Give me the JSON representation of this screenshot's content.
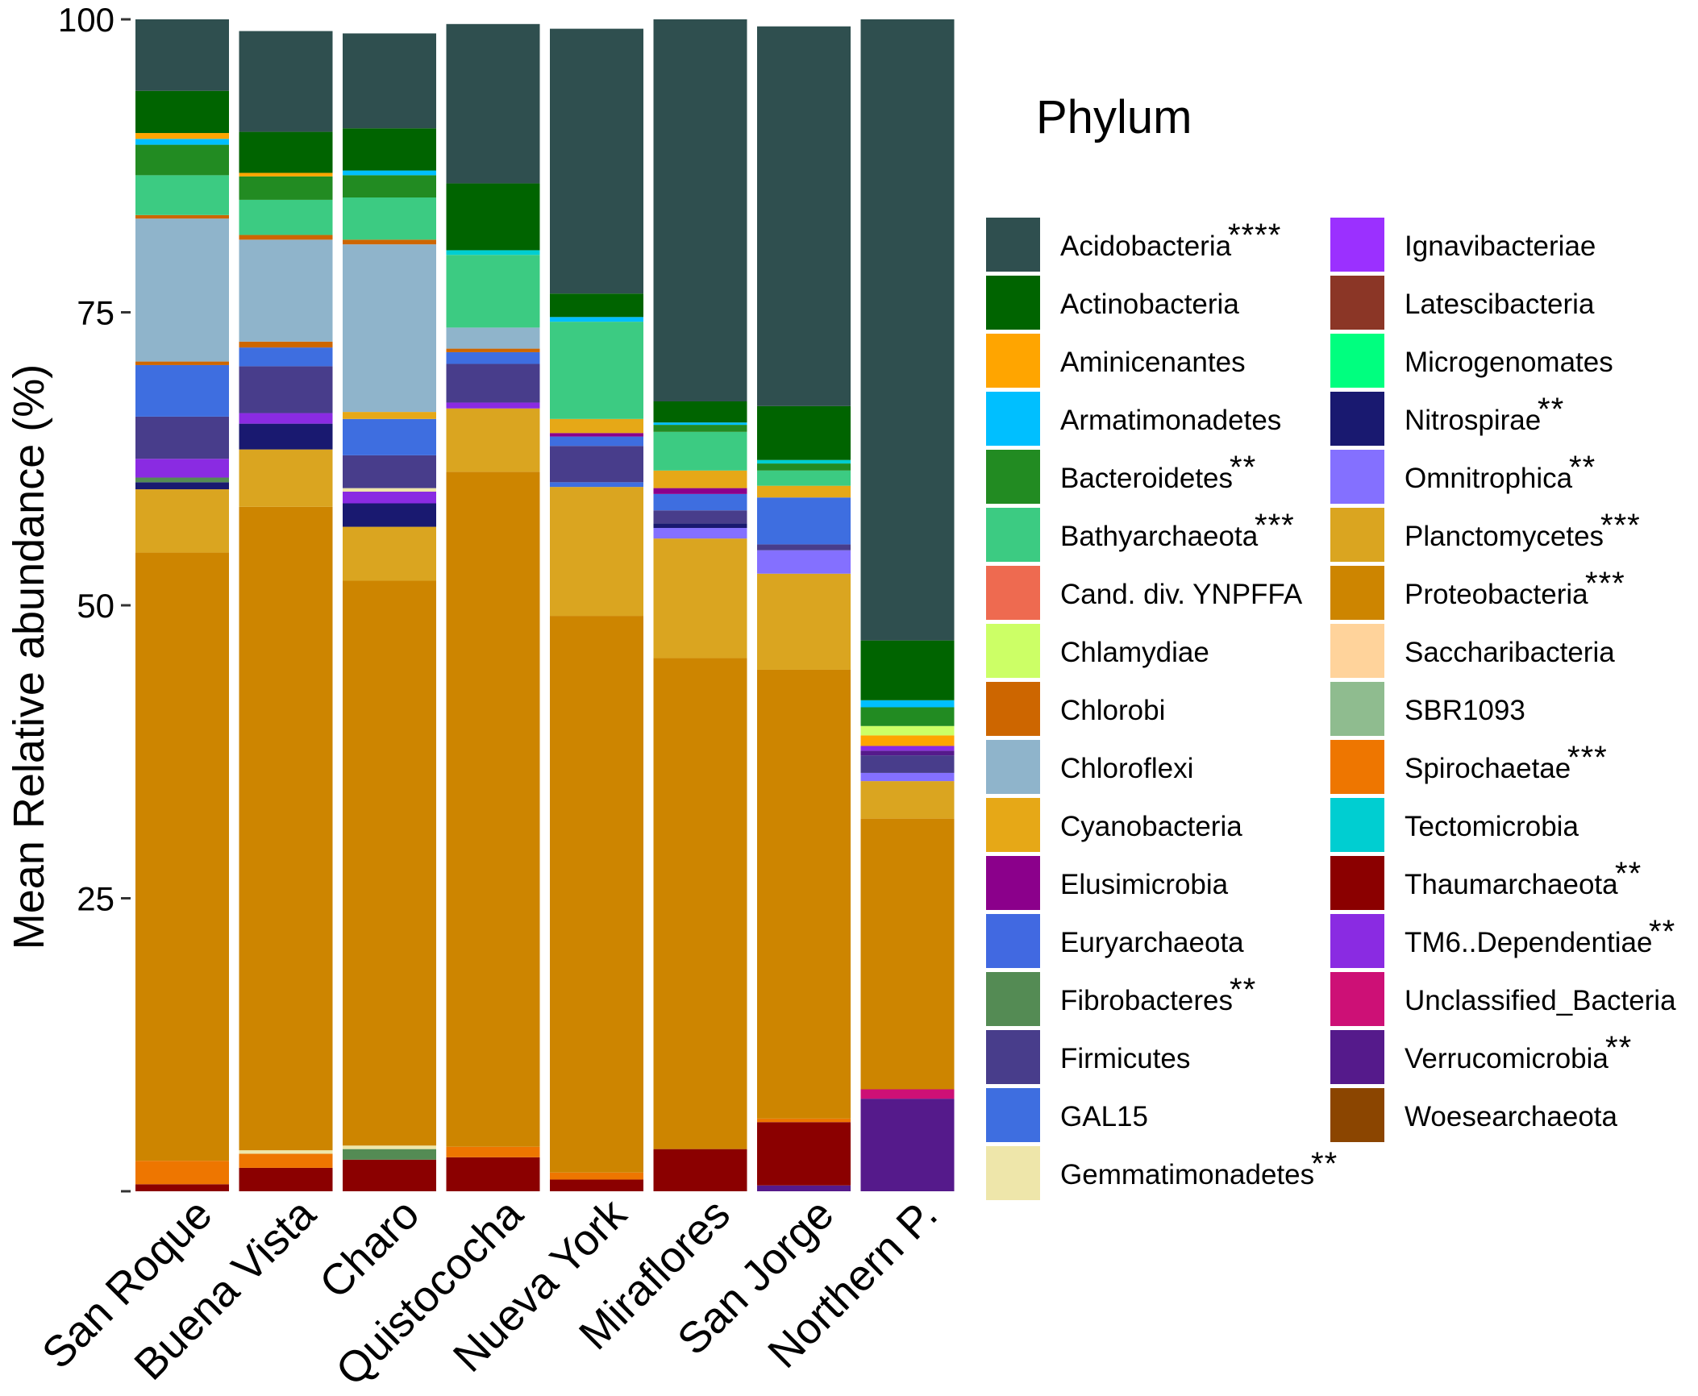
{
  "chart_data": {
    "type": "stacked-bar",
    "ylabel": "Mean Relative abundance (%)",
    "ylim": [
      0,
      100
    ],
    "yticks": [
      "0",
      "25",
      "50",
      "75",
      "100"
    ],
    "yticks_display": [
      "",
      "25",
      "50",
      "75",
      "100"
    ],
    "categories": [
      "San Roque",
      "Buena Vista",
      "Charo",
      "Quistococha",
      "Nueva York",
      "Miraflores",
      "San Jorge",
      "Northern P."
    ],
    "legend_title": "Phylum",
    "phyla": [
      {
        "name": "Acidobacteria",
        "color": "#2F4F4F",
        "stars": "****"
      },
      {
        "name": "Actinobacteria",
        "color": "#006400",
        "stars": ""
      },
      {
        "name": "Aminicenantes",
        "color": "#FFA500",
        "stars": ""
      },
      {
        "name": "Armatimonadetes",
        "color": "#00BFFF",
        "stars": ""
      },
      {
        "name": "Bacteroidetes",
        "color": "#228B22",
        "stars": "**"
      },
      {
        "name": "Bathyarchaeota",
        "color": "#3CCB82",
        "stars": "***"
      },
      {
        "name": "Cand. div. YNPFFA",
        "color": "#EE6A50",
        "stars": ""
      },
      {
        "name": "Chlamydiae",
        "color": "#CCFF66",
        "stars": ""
      },
      {
        "name": "Chlorobi",
        "color": "#CD6600",
        "stars": ""
      },
      {
        "name": "Chloroflexi",
        "color": "#8FB4CB",
        "stars": ""
      },
      {
        "name": "Cyanobacteria",
        "color": "#E6A817",
        "stars": ""
      },
      {
        "name": "Elusimicrobia",
        "color": "#8B008B",
        "stars": ""
      },
      {
        "name": "Euryarchaeota",
        "color": "#4169E1",
        "stars": ""
      },
      {
        "name": "Fibrobacteres",
        "color": "#548B54",
        "stars": "**"
      },
      {
        "name": "Firmicutes",
        "color": "#483D8B",
        "stars": ""
      },
      {
        "name": "GAL15",
        "color": "#3E6EE0",
        "stars": ""
      },
      {
        "name": "Gemmatimonadetes",
        "color": "#EEE6AA",
        "stars": "**"
      },
      {
        "name": "Ignavibacteriae",
        "color": "#9B30FF",
        "stars": ""
      },
      {
        "name": "Latescibacteria",
        "color": "#8B3626",
        "stars": ""
      },
      {
        "name": "Microgenomates",
        "color": "#00FF7F",
        "stars": ""
      },
      {
        "name": "Nitrospirae",
        "color": "#191970",
        "stars": "**"
      },
      {
        "name": "Omnitrophica",
        "color": "#8470FF",
        "stars": "**"
      },
      {
        "name": "Planctomycetes",
        "color": "#DAA520",
        "stars": "***"
      },
      {
        "name": "Proteobacteria",
        "color": "#CD8500",
        "stars": "***"
      },
      {
        "name": "Saccharibacteria",
        "color": "#FFD39B",
        "stars": ""
      },
      {
        "name": "SBR1093",
        "color": "#8FBC8F",
        "stars": ""
      },
      {
        "name": "Spirochaetae",
        "color": "#EE7600",
        "stars": "***"
      },
      {
        "name": "Tectomicrobia",
        "color": "#00CED1",
        "stars": ""
      },
      {
        "name": "Thaumarchaeota",
        "color": "#8B0000",
        "stars": "**"
      },
      {
        "name": "TM6..Dependentiae",
        "color": "#8A2BE2",
        "stars": "**"
      },
      {
        "name": "Unclassified_Bacteria",
        "color": "#CD1076",
        "stars": ""
      },
      {
        "name": "Verrucomicrobia",
        "color": "#551A8B",
        "stars": "**"
      },
      {
        "name": "Woesearchaeota",
        "color": "#8B4500",
        "stars": ""
      }
    ],
    "series": [
      {
        "sample": "San Roque",
        "segments": [
          [
            "Thaumarchaeota",
            0.6
          ],
          [
            "Spirochaetae",
            2.0
          ],
          [
            "Proteobacteria",
            51.9
          ],
          [
            "Planctomycetes",
            5.4
          ],
          [
            "Nitrospirae",
            0.6
          ],
          [
            "Fibrobacteres",
            0.4
          ],
          [
            "TM6..Dependentiae",
            1.6
          ],
          [
            "Firmicutes",
            3.6
          ],
          [
            "GAL15",
            4.4
          ],
          [
            "Chlorobi",
            0.3
          ],
          [
            "Chloroflexi",
            12.2
          ],
          [
            "Chlorobi",
            0.3
          ],
          [
            "Bathyarchaeota",
            3.4
          ],
          [
            "Bacteroidetes",
            2.6
          ],
          [
            "Armatimonadetes",
            0.5
          ],
          [
            "Aminicenantes",
            0.5
          ],
          [
            "Actinobacteria",
            3.6
          ],
          [
            "Acidobacteria",
            6.1
          ]
        ]
      },
      {
        "sample": "Buena Vista",
        "segments": [
          [
            "Thaumarchaeota",
            2.0
          ],
          [
            "Spirochaetae",
            1.2
          ],
          [
            "Gemmatimonadetes",
            0.3
          ],
          [
            "Proteobacteria",
            54.9
          ],
          [
            "Planctomycetes",
            4.9
          ],
          [
            "Nitrospirae",
            2.2
          ],
          [
            "TM6..Dependentiae",
            0.9
          ],
          [
            "Firmicutes",
            4.0
          ],
          [
            "GAL15",
            1.6
          ],
          [
            "Chlorobi",
            0.5
          ],
          [
            "Chloroflexi",
            8.7
          ],
          [
            "Chlorobi",
            0.4
          ],
          [
            "Bathyarchaeota",
            3.0
          ],
          [
            "Bacteroidetes",
            2.0
          ],
          [
            "Aminicenantes",
            0.3
          ],
          [
            "Actinobacteria",
            3.5
          ],
          [
            "Acidobacteria",
            8.6
          ]
        ]
      },
      {
        "sample": "Charo",
        "segments": [
          [
            "Thaumarchaeota",
            2.7
          ],
          [
            "Fibrobacteres",
            0.9
          ],
          [
            "Gemmatimonadetes",
            0.3
          ],
          [
            "Proteobacteria",
            48.2
          ],
          [
            "Planctomycetes",
            4.6
          ],
          [
            "Nitrospirae",
            2.0
          ],
          [
            "TM6..Dependentiae",
            1.0
          ],
          [
            "Gemmatimonadetes",
            0.3
          ],
          [
            "Firmicutes",
            2.8
          ],
          [
            "GAL15",
            3.1
          ],
          [
            "Cyanobacteria",
            0.6
          ],
          [
            "Chloroflexi",
            14.3
          ],
          [
            "Chlorobi",
            0.4
          ],
          [
            "Bathyarchaeota",
            3.6
          ],
          [
            "Bacteroidetes",
            1.9
          ],
          [
            "Armatimonadetes",
            0.4
          ],
          [
            "Actinobacteria",
            3.6
          ],
          [
            "Acidobacteria",
            8.1
          ]
        ]
      },
      {
        "sample": "Quistococha",
        "segments": [
          [
            "Thaumarchaeota",
            2.9
          ],
          [
            "Spirochaetae",
            0.9
          ],
          [
            "Proteobacteria",
            57.6
          ],
          [
            "Planctomycetes",
            5.4
          ],
          [
            "TM6..Dependentiae",
            0.5
          ],
          [
            "Firmicutes",
            3.3
          ],
          [
            "GAL15",
            1.0
          ],
          [
            "Chlorobi",
            0.3
          ],
          [
            "Chloroflexi",
            1.8
          ],
          [
            "Bathyarchaeota",
            6.2
          ],
          [
            "Tectomicrobia",
            0.4
          ],
          [
            "Actinobacteria",
            5.7
          ],
          [
            "Acidobacteria",
            13.6
          ]
        ]
      },
      {
        "sample": "Nueva York",
        "segments": [
          [
            "Thaumarchaeota",
            1.0
          ],
          [
            "Spirochaetae",
            0.6
          ],
          [
            "Proteobacteria",
            47.5
          ],
          [
            "Planctomycetes",
            11.0
          ],
          [
            "GAL15",
            0.4
          ],
          [
            "Firmicutes",
            3.1
          ],
          [
            "GAL15",
            0.8
          ],
          [
            "Elusimicrobia",
            0.3
          ],
          [
            "Cyanobacteria",
            1.2
          ],
          [
            "Bathyarchaeota",
            8.3
          ],
          [
            "Armatimonadetes",
            0.4
          ],
          [
            "Actinobacteria",
            2.0
          ],
          [
            "Acidobacteria",
            22.6
          ]
        ]
      },
      {
        "sample": "Miraflores",
        "segments": [
          [
            "Thaumarchaeota",
            3.6
          ],
          [
            "Proteobacteria",
            41.9
          ],
          [
            "Planctomycetes",
            10.2
          ],
          [
            "Omnitrophica",
            0.9
          ],
          [
            "Nitrospirae",
            0.4
          ],
          [
            "Firmicutes",
            1.1
          ],
          [
            "GAL15",
            1.4
          ],
          [
            "Elusimicrobia",
            0.5
          ],
          [
            "Cyanobacteria",
            1.5
          ],
          [
            "Bathyarchaeota",
            3.3
          ],
          [
            "Bacteroidetes",
            0.6
          ],
          [
            "Armatimonadetes",
            0.2
          ],
          [
            "Actinobacteria",
            1.8
          ],
          [
            "Acidobacteria",
            32.6
          ]
        ]
      },
      {
        "sample": "San Jorge",
        "segments": [
          [
            "Verrucomicrobia",
            0.5
          ],
          [
            "Thaumarchaeota",
            5.4
          ],
          [
            "Spirochaetae",
            0.3
          ],
          [
            "Proteobacteria",
            38.3
          ],
          [
            "Planctomycetes",
            8.2
          ],
          [
            "Omnitrophica",
            2.0
          ],
          [
            "Firmicutes",
            0.5
          ],
          [
            "GAL15",
            4.0
          ],
          [
            "Cyanobacteria",
            1.0
          ],
          [
            "Bathyarchaeota",
            1.3
          ],
          [
            "Bacteroidetes",
            0.6
          ],
          [
            "Tectomicrobia",
            0.3
          ],
          [
            "Actinobacteria",
            4.6
          ],
          [
            "Acidobacteria",
            32.4
          ]
        ]
      },
      {
        "sample": "Northern P.",
        "segments": [
          [
            "Verrucomicrobia",
            7.9
          ],
          [
            "Unclassified_Bacteria",
            0.8
          ],
          [
            "Proteobacteria",
            23.1
          ],
          [
            "Planctomycetes",
            3.2
          ],
          [
            "Omnitrophica",
            0.7
          ],
          [
            "Firmicutes",
            1.5
          ],
          [
            "Verrucomicrobia",
            0.4
          ],
          [
            "TM6..Dependentiae",
            0.4
          ],
          [
            "Aminicenantes",
            0.9
          ],
          [
            "Chlamydiae",
            0.8
          ],
          [
            "Bacteroidetes",
            1.6
          ],
          [
            "Armatimonadetes",
            0.6
          ],
          [
            "Actinobacteria",
            5.1
          ],
          [
            "Acidobacteria",
            53.0
          ]
        ]
      }
    ]
  }
}
